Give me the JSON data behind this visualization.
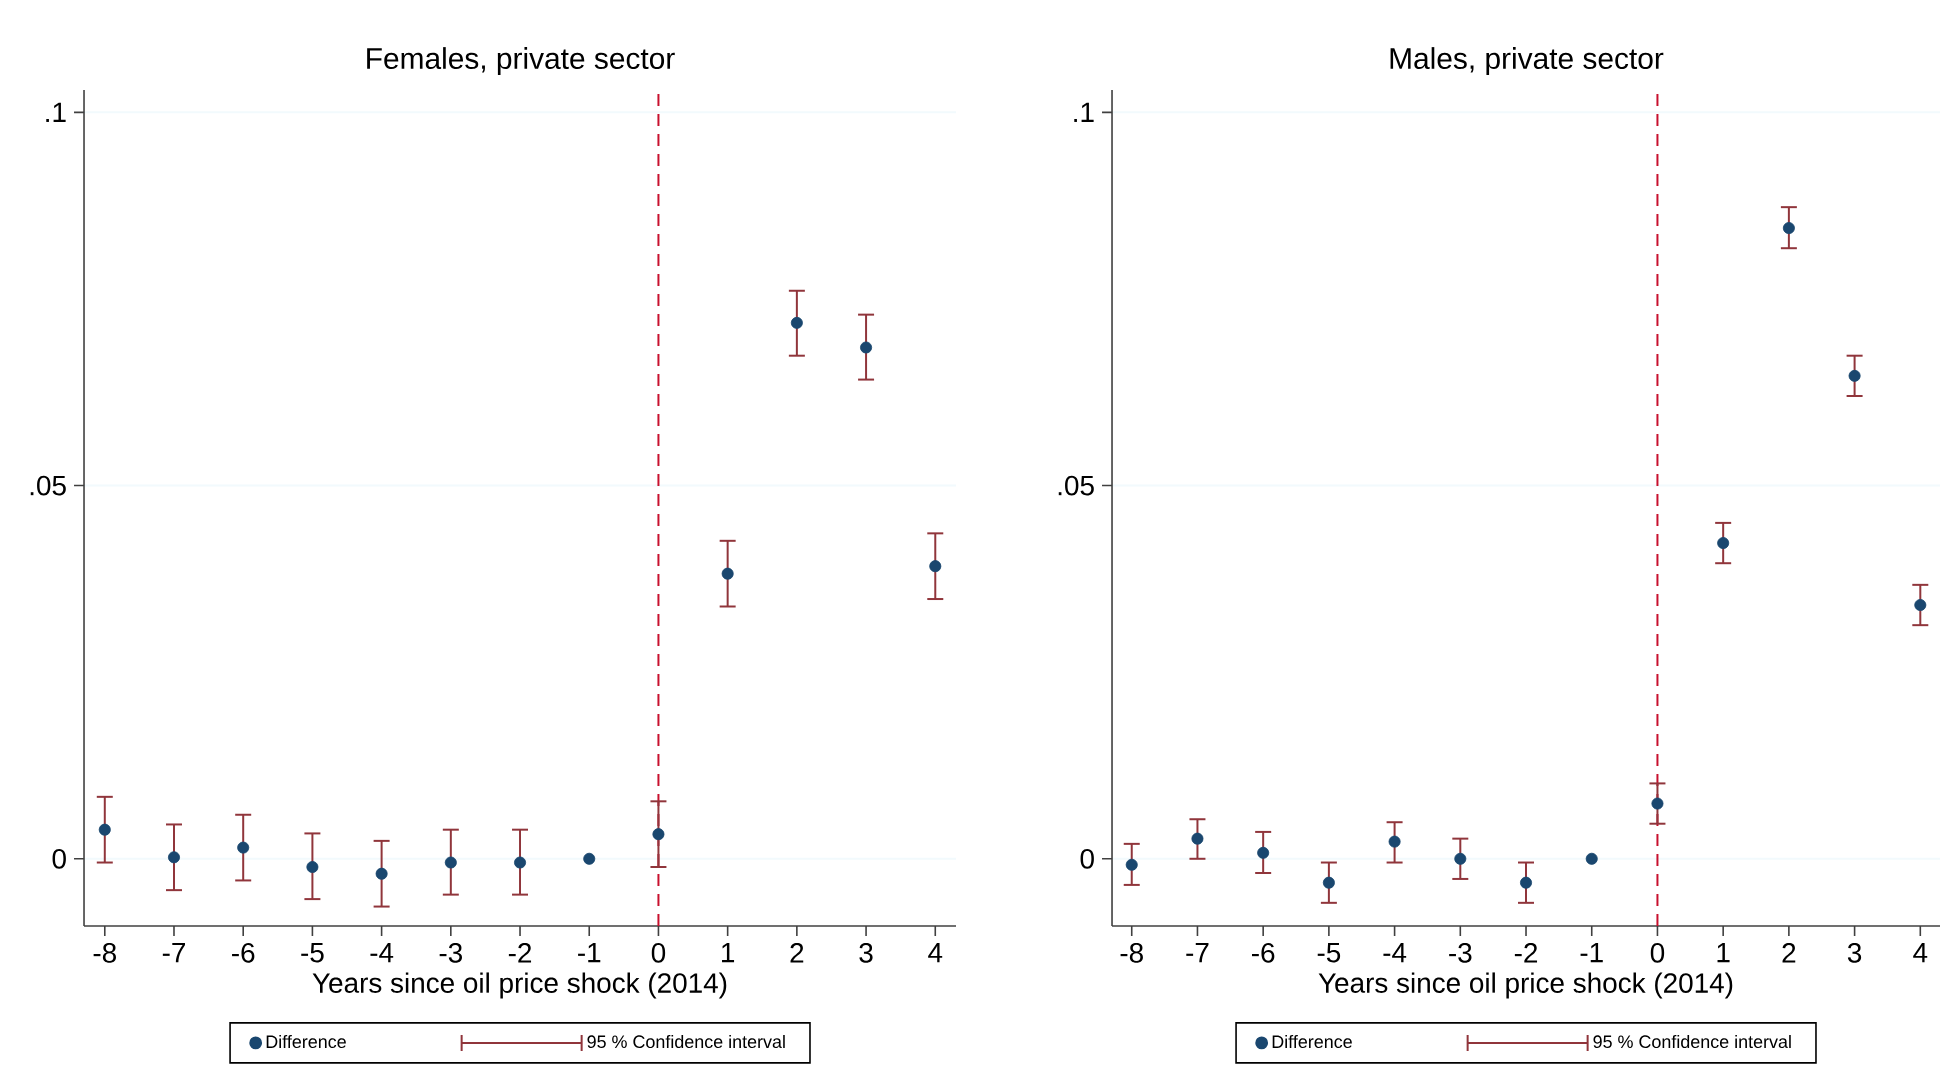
{
  "chart_data": [
    {
      "type": "scatter",
      "title": "Females, private sector",
      "xlabel": "Years since oil price shock (2014)",
      "x": [
        -8,
        -7,
        -6,
        -5,
        -4,
        -3,
        -2,
        -1,
        0,
        1,
        2,
        3,
        4
      ],
      "series": [
        {
          "name": "Difference",
          "color": "#1a476f",
          "marker": "circle",
          "values": [
            0.0039,
            0.0002,
            0.0015,
            -0.0011,
            -0.002,
            -0.0005,
            -0.0005,
            0,
            0.0033,
            0.0382,
            0.0718,
            0.0685,
            0.0392
          ],
          "errors": [
            [
              -0.0005,
              0.0083
            ],
            [
              -0.0042,
              0.0046
            ],
            [
              -0.0029,
              0.0059
            ],
            [
              -0.0054,
              0.0034
            ],
            [
              -0.0064,
              0.0024
            ],
            [
              -0.0048,
              0.0039
            ],
            [
              -0.0048,
              0.0039
            ],
            null,
            [
              -0.0011,
              0.0077
            ],
            [
              0.0338,
              0.0426
            ],
            [
              0.0674,
              0.0761
            ],
            [
              0.0642,
              0.0729
            ],
            [
              0.0348,
              0.0436
            ]
          ]
        },
        {
          "name": "95 % Confidence interval",
          "color": "#90353b",
          "values": [
            null,
            null,
            null,
            null,
            null,
            null,
            null,
            null,
            null,
            null,
            null,
            null,
            null
          ]
        }
      ],
      "xlim": [
        -8.3,
        4.3
      ],
      "xticks": [
        -8,
        -7,
        -6,
        -5,
        -4,
        -3,
        -2,
        -1,
        0,
        1,
        2,
        3,
        4
      ],
      "ylim": [
        -0.009,
        0.103
      ],
      "yticks": [
        {
          "value": 0,
          "label": "0"
        },
        {
          "value": 0.05,
          "label": ".05"
        },
        {
          "value": 0.1,
          "label": ".1"
        }
      ],
      "ref_lines": [
        {
          "axis": "x",
          "value": 0,
          "color": "#c8102e",
          "line_style": "dashed"
        }
      ],
      "grid": "y",
      "legend": "bottom"
    },
    {
      "type": "scatter",
      "title": "Males, private sector",
      "xlabel": "Years since oil price shock (2014)",
      "x": [
        -8,
        -7,
        -6,
        -5,
        -4,
        -3,
        -2,
        -1,
        0,
        1,
        2,
        3,
        4
      ],
      "series": [
        {
          "name": "Difference",
          "color": "#1a476f",
          "marker": "circle",
          "values": [
            -0.0008,
            0.0027,
            0.0008,
            -0.0032,
            0.0023,
            0,
            -0.0032,
            0,
            0.0074,
            0.0423,
            0.0845,
            0.0647,
            0.034
          ],
          "errors": [
            [
              -0.0035,
              0.002
            ],
            [
              0,
              0.0053
            ],
            [
              -0.0019,
              0.0036
            ],
            [
              -0.0059,
              -0.0005
            ],
            [
              -0.0005,
              0.0049
            ],
            [
              -0.0027,
              0.0027
            ],
            [
              -0.0059,
              -0.0005
            ],
            null,
            [
              0.0047,
              0.0101
            ],
            [
              0.0396,
              0.045
            ],
            [
              0.0818,
              0.0873
            ],
            [
              0.062,
              0.0674
            ],
            [
              0.0313,
              0.0367
            ]
          ]
        },
        {
          "name": "95 % Confidence interval",
          "color": "#90353b",
          "values": [
            null,
            null,
            null,
            null,
            null,
            null,
            null,
            null,
            null,
            null,
            null,
            null,
            null
          ]
        }
      ],
      "xlim": [
        -8.3,
        4.3
      ],
      "xticks": [
        -8,
        -7,
        -6,
        -5,
        -4,
        -3,
        -2,
        -1,
        0,
        1,
        2,
        3,
        4
      ],
      "ylim": [
        -0.009,
        0.103
      ],
      "yticks": [
        {
          "value": 0,
          "label": "0"
        },
        {
          "value": 0.05,
          "label": ".05"
        },
        {
          "value": 0.1,
          "label": ".1"
        }
      ],
      "ref_lines": [
        {
          "axis": "x",
          "value": 0,
          "color": "#c8102e",
          "line_style": "dashed"
        }
      ],
      "grid": "y",
      "legend": "bottom"
    }
  ]
}
